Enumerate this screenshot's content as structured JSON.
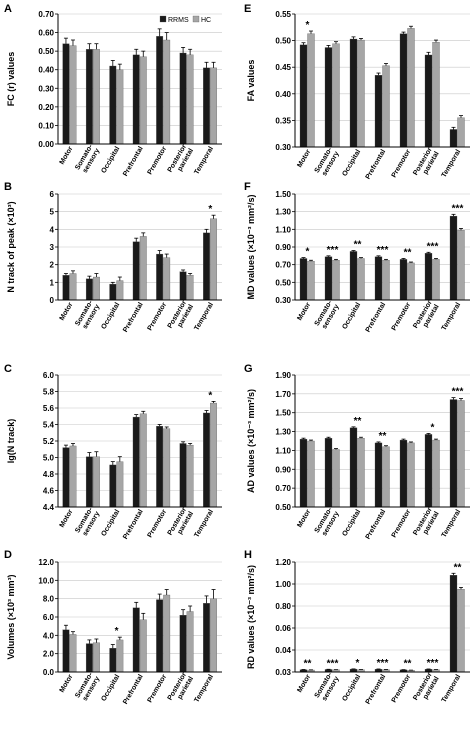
{
  "figure": {
    "series_colors": {
      "RRMS": "#1a1a1a",
      "HC": "#a6a6a6"
    },
    "legend": [
      "RRMS",
      "HC"
    ]
  },
  "chart_data": [
    {
      "panel": "A",
      "type": "bar",
      "ylabel": "FC  (r) values",
      "categories": [
        "Motor",
        "Somato-sensory",
        "Occipital",
        "Prefrontal",
        "Premotor",
        "Posterior parietal",
        "Temporal"
      ],
      "series": [
        {
          "name": "RRMS",
          "values": [
            0.54,
            0.51,
            0.42,
            0.48,
            0.58,
            0.49,
            0.41
          ]
        },
        {
          "name": "HC",
          "values": [
            0.53,
            0.51,
            0.4,
            0.47,
            0.56,
            0.48,
            0.41
          ]
        }
      ],
      "errors": [
        [
          0.03,
          0.03,
          0.03,
          0.03,
          0.04,
          0.03,
          0.03
        ],
        [
          0.03,
          0.03,
          0.03,
          0.03,
          0.04,
          0.03,
          0.03
        ]
      ],
      "ylim": [
        0,
        0.7
      ],
      "yticks": [
        "0.00",
        "0.10",
        "0.20",
        "0.30",
        "0.40",
        "0.50",
        "0.60",
        "0.70"
      ],
      "significance": [
        "",
        "",
        "",
        "",
        "",
        "",
        ""
      ],
      "legend_shown": true
    },
    {
      "panel": "B",
      "type": "bar",
      "ylabel": "N track  of peak (×10³)",
      "categories": [
        "Motor",
        "Somato-sensory",
        "Occipital",
        "Prefrontal",
        "Premotor",
        "Posterior parietal",
        "Temporal"
      ],
      "series": [
        {
          "name": "RRMS",
          "values": [
            1.4,
            1.2,
            0.9,
            3.3,
            2.6,
            1.6,
            3.8
          ]
        },
        {
          "name": "HC",
          "values": [
            1.5,
            1.3,
            1.1,
            3.6,
            2.4,
            1.4,
            4.6
          ]
        }
      ],
      "errors": [
        [
          0.1,
          0.15,
          0.1,
          0.2,
          0.2,
          0.1,
          0.2
        ],
        [
          0.15,
          0.2,
          0.2,
          0.2,
          0.2,
          0.1,
          0.2
        ]
      ],
      "ylim": [
        0,
        6
      ],
      "yticks": [
        "0",
        "1",
        "2",
        "3",
        "4",
        "5",
        "6"
      ],
      "significance": [
        "",
        "",
        "",
        "",
        "",
        "",
        "*"
      ],
      "legend_shown": false
    },
    {
      "panel": "C",
      "type": "bar",
      "ylabel": "lg(N track)",
      "categories": [
        "Motor",
        "Somato-sensory",
        "Occipital",
        "Prefrontal",
        "Premotor",
        "Posterior parietal",
        "Temporal"
      ],
      "series": [
        {
          "name": "RRMS",
          "values": [
            5.12,
            5.01,
            4.91,
            5.49,
            5.38,
            5.17,
            5.54
          ]
        },
        {
          "name": "HC",
          "values": [
            5.14,
            5.01,
            4.95,
            5.53,
            5.35,
            5.15,
            5.66
          ]
        }
      ],
      "errors": [
        [
          0.03,
          0.05,
          0.04,
          0.03,
          0.02,
          0.02,
          0.03
        ],
        [
          0.03,
          0.06,
          0.06,
          0.03,
          0.02,
          0.02,
          0.02
        ]
      ],
      "ylim": [
        4.4,
        6.0
      ],
      "yticks": [
        "4.4",
        "4.6",
        "4.8",
        "5.0",
        "5.2",
        "5.4",
        "5.6",
        "5.8",
        "6.0"
      ],
      "significance": [
        "",
        "",
        "",
        "",
        "",
        "",
        "*"
      ],
      "legend_shown": false
    },
    {
      "panel": "D",
      "type": "bar",
      "ylabel": "Volumes (×10³ mm³)",
      "categories": [
        "Motor",
        "Somato-sensory",
        "Occipital",
        "Prefrontal",
        "Premotor",
        "Posterior parietal",
        "Temporal"
      ],
      "series": [
        {
          "name": "RRMS",
          "values": [
            4.6,
            3.1,
            2.6,
            7.0,
            7.9,
            6.2,
            7.5
          ]
        },
        {
          "name": "HC",
          "values": [
            4.1,
            3.2,
            3.5,
            5.7,
            8.4,
            6.6,
            8.0
          ]
        }
      ],
      "errors": [
        [
          0.5,
          0.4,
          0.4,
          0.6,
          0.6,
          0.6,
          0.8
        ],
        [
          0.3,
          0.4,
          0.3,
          0.7,
          0.6,
          0.6,
          1.0
        ]
      ],
      "ylim": [
        0,
        12
      ],
      "yticks": [
        "0.0",
        "2.0",
        "4.0",
        "6.0",
        "8.0",
        "10.0",
        "12.0"
      ],
      "significance": [
        "",
        "",
        "*",
        "",
        "",
        "",
        ""
      ],
      "legend_shown": false
    },
    {
      "panel": "E",
      "type": "bar",
      "ylabel": "FA values",
      "categories": [
        "Motor",
        "Somato-sensory",
        "Occipital",
        "Prefrontal",
        "Premotor",
        "Posterior parietal",
        "Temporal"
      ],
      "series": [
        {
          "name": "RRMS",
          "values": [
            0.492,
            0.487,
            0.503,
            0.435,
            0.513,
            0.473,
            0.333
          ]
        },
        {
          "name": "HC",
          "values": [
            0.513,
            0.494,
            0.501,
            0.453,
            0.523,
            0.497,
            0.355
          ]
        }
      ],
      "errors": [
        [
          0.004,
          0.004,
          0.004,
          0.004,
          0.003,
          0.005,
          0.004
        ],
        [
          0.005,
          0.004,
          0.003,
          0.004,
          0.004,
          0.004,
          0.004
        ]
      ],
      "ylim": [
        0.3,
        0.55
      ],
      "yticks": [
        "0.30",
        "0.35",
        "0.40",
        "0.45",
        "0.50",
        "0.55"
      ],
      "significance": [
        "*",
        "",
        "",
        "",
        "",
        "",
        ""
      ],
      "legend_shown": false
    },
    {
      "panel": "F",
      "type": "bar",
      "ylabel": "MD values (×10⁻³ mm²/s)",
      "categories": [
        "Motor",
        "Somato-sensory",
        "Occipital",
        "Prefrontal",
        "Premotor",
        "Posterior parietal",
        "Temporal"
      ],
      "series": [
        {
          "name": "RRMS",
          "values": [
            0.77,
            0.79,
            0.85,
            0.79,
            0.76,
            0.83,
            1.25
          ]
        },
        {
          "name": "HC",
          "values": [
            0.74,
            0.75,
            0.77,
            0.75,
            0.72,
            0.76,
            1.09
          ]
        }
      ],
      "errors": [
        [
          0.01,
          0.01,
          0.01,
          0.01,
          0.01,
          0.01,
          0.02
        ],
        [
          0.01,
          0.01,
          0.01,
          0.01,
          0.01,
          0.01,
          0.02
        ]
      ],
      "ylim": [
        0.3,
        1.5
      ],
      "yticks": [
        "0.30",
        "0.50",
        "0.70",
        "0.90",
        "1.10",
        "1.30",
        "1.50"
      ],
      "significance": [
        "*",
        "***",
        "**",
        "***",
        "**",
        "***",
        "***"
      ],
      "legend_shown": false
    },
    {
      "panel": "G",
      "type": "bar",
      "ylabel": "AD values (×10⁻³ mm²/s)",
      "categories": [
        "Motor",
        "Somato-sensory",
        "Occipital",
        "Prefrontal",
        "Premotor",
        "Posterior parietal",
        "Temporal"
      ],
      "series": [
        {
          "name": "RRMS",
          "values": [
            1.22,
            1.23,
            1.34,
            1.18,
            1.21,
            1.27,
            1.64
          ]
        },
        {
          "name": "HC",
          "values": [
            1.2,
            1.11,
            1.23,
            1.14,
            1.18,
            1.21,
            1.63
          ]
        }
      ],
      "errors": [
        [
          0.01,
          0.01,
          0.01,
          0.01,
          0.01,
          0.01,
          0.02
        ],
        [
          0.01,
          0.01,
          0.01,
          0.01,
          0.01,
          0.01,
          0.02
        ]
      ],
      "ylim": [
        0.5,
        1.9
      ],
      "yticks": [
        "0.50",
        "0.70",
        "0.90",
        "1.10",
        "1.30",
        "1.50",
        "1.70",
        "1.90"
      ],
      "significance": [
        "",
        "",
        "**",
        "**",
        "",
        "*",
        "***"
      ],
      "legend_shown": false
    },
    {
      "panel": "H",
      "type": "bar",
      "ylabel": "RD values (×10⁻³ mm²/s)",
      "categories": [
        "Motor",
        "Somato-sensory",
        "Occipital",
        "Prefrontal",
        "Premotor",
        "Posterior parietal",
        "Temporal"
      ],
      "series": [
        {
          "name": "RRMS",
          "values": [
            0.055,
            0.057,
            0.061,
            0.06,
            0.053,
            0.06,
            1.06
          ]
        },
        {
          "name": "HC",
          "values": [
            0.051,
            0.053,
            0.054,
            0.055,
            0.048,
            0.054,
            0.91
          ]
        }
      ],
      "errors": [
        [
          0.002,
          0.002,
          0.002,
          0.002,
          0.002,
          0.002,
          0.02
        ],
        [
          0.002,
          0.002,
          0.002,
          0.002,
          0.002,
          0.002,
          0.02
        ]
      ],
      "ylim": [
        0.03,
        1.2
      ],
      "yticks": [
        "0.03",
        "0.04",
        "0.06",
        "0.80",
        "1.00",
        "1.20"
      ],
      "significance": [
        "**",
        "***",
        "*",
        "***",
        "**",
        "***",
        "**"
      ],
      "legend_shown": false
    }
  ]
}
